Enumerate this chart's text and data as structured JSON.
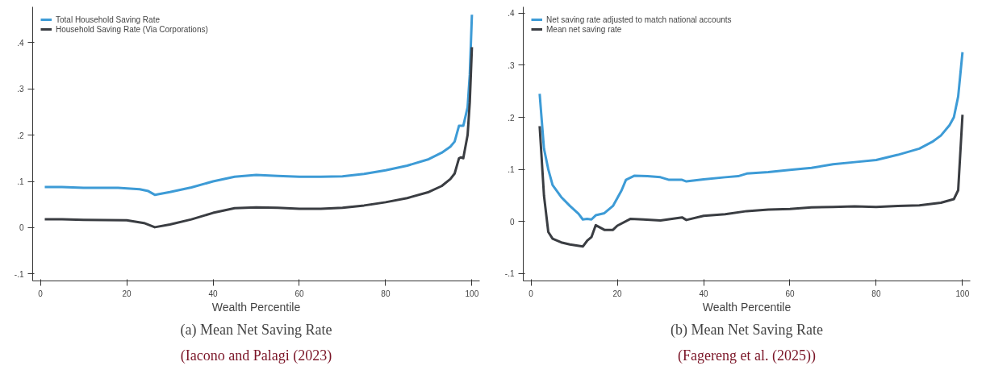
{
  "chart_data": [
    {
      "type": "line",
      "title": "(a) Mean Net Saving Rate",
      "subtitle": "(Iacono and Palagi (2023)",
      "xlabel": "Wealth Percentile",
      "xlim": [
        -1.8,
        101.8
      ],
      "ylim": [
        -0.115,
        0.477
      ],
      "xticks": [
        0,
        20,
        40,
        60,
        80,
        100
      ],
      "yticks": [
        {
          "value": -0.1,
          "label": "-.1"
        },
        0,
        {
          "value": 0.1,
          "label": ".1"
        },
        {
          "value": 0.2,
          "label": ".2"
        },
        {
          "value": 0.3,
          "label": ".3"
        },
        {
          "value": 0.4,
          "label": ".4"
        }
      ],
      "grid": false,
      "legend": "top left",
      "line_style": "solid",
      "marker": "none",
      "series": [
        {
          "name": "Total Household Saving Rate",
          "color": "#3d9bd6",
          "x": [
            1,
            5,
            10,
            18,
            23,
            25,
            26.5,
            30,
            35,
            40,
            45,
            50,
            55,
            60,
            65,
            70,
            75,
            80,
            85,
            90,
            93,
            95,
            96,
            97,
            97.5,
            98,
            99,
            99.5,
            100
          ],
          "values": [
            0.088,
            0.088,
            0.086,
            0.086,
            0.083,
            0.079,
            0.071,
            0.077,
            0.087,
            0.1,
            0.11,
            0.114,
            0.112,
            0.11,
            0.11,
            0.111,
            0.116,
            0.124,
            0.134,
            0.148,
            0.162,
            0.175,
            0.186,
            0.22,
            0.22,
            0.22,
            0.26,
            0.33,
            0.46
          ]
        },
        {
          "name": "Household Saving Rate (Via Corporations)",
          "color": "#3a3d42",
          "x": [
            1,
            5,
            10,
            20,
            24,
            26.5,
            30,
            35,
            40,
            45,
            50,
            55,
            60,
            65,
            70,
            75,
            80,
            85,
            90,
            93,
            95,
            96,
            97,
            97.5,
            98,
            99,
            99.5,
            100
          ],
          "values": [
            0.018,
            0.018,
            0.017,
            0.016,
            0.01,
            0.001,
            0.007,
            0.018,
            0.032,
            0.042,
            0.044,
            0.043,
            0.041,
            0.041,
            0.043,
            0.048,
            0.055,
            0.064,
            0.077,
            0.09,
            0.105,
            0.117,
            0.15,
            0.152,
            0.15,
            0.2,
            0.27,
            0.39
          ]
        }
      ]
    },
    {
      "type": "line",
      "title": "(b) Mean Net Saving Rate",
      "subtitle": "(Fagereng et al. (2025))",
      "xlabel": "Wealth Percentile",
      "xlim": [
        -1.8,
        101.8
      ],
      "ylim": [
        -0.114,
        0.412
      ],
      "xticks": [
        0,
        20,
        40,
        60,
        80,
        100
      ],
      "yticks": [
        {
          "value": -0.1,
          "label": "-.1"
        },
        0,
        {
          "value": 0.1,
          "label": ".1"
        },
        {
          "value": 0.2,
          "label": ".2"
        },
        {
          "value": 0.3,
          "label": ".3"
        },
        {
          "value": 0.4,
          "label": ".4"
        }
      ],
      "grid": false,
      "legend": "top left",
      "line_style": "solid",
      "marker": "none",
      "series": [
        {
          "name": "Net saving rate adjusted to match national accounts",
          "color": "#3d9bd6",
          "x": [
            2,
            3,
            4,
            5,
            7,
            9,
            11,
            12,
            13,
            14,
            15,
            17,
            19,
            21,
            22,
            24,
            27,
            30,
            32,
            35,
            36,
            40,
            45,
            48,
            50,
            55,
            60,
            65,
            70,
            75,
            80,
            85,
            90,
            93,
            95,
            97,
            98,
            99,
            100
          ],
          "values": [
            0.245,
            0.14,
            0.1,
            0.07,
            0.047,
            0.03,
            0.015,
            0.004,
            0.005,
            0.004,
            0.012,
            0.016,
            0.03,
            0.06,
            0.08,
            0.088,
            0.087,
            0.085,
            0.08,
            0.08,
            0.077,
            0.081,
            0.085,
            0.087,
            0.092,
            0.095,
            0.099,
            0.103,
            0.11,
            0.114,
            0.118,
            0.128,
            0.14,
            0.153,
            0.165,
            0.185,
            0.2,
            0.24,
            0.325
          ]
        },
        {
          "name": "Mean net saving rate",
          "color": "#3a3d42",
          "x": [
            2,
            3,
            4,
            5,
            7,
            9,
            12,
            13,
            14,
            15,
            17,
            19,
            20,
            23,
            26,
            30,
            35,
            36,
            40,
            45,
            50,
            55,
            60,
            65,
            70,
            75,
            80,
            85,
            90,
            95,
            98,
            99,
            100
          ],
          "values": [
            0.183,
            0.05,
            -0.02,
            -0.033,
            -0.04,
            -0.044,
            -0.048,
            -0.037,
            -0.03,
            -0.007,
            -0.016,
            -0.016,
            -0.008,
            0.005,
            0.004,
            0.002,
            0.008,
            0.003,
            0.011,
            0.014,
            0.02,
            0.023,
            0.024,
            0.027,
            0.028,
            0.029,
            0.028,
            0.03,
            0.031,
            0.036,
            0.043,
            0.06,
            0.205
          ]
        }
      ]
    }
  ]
}
